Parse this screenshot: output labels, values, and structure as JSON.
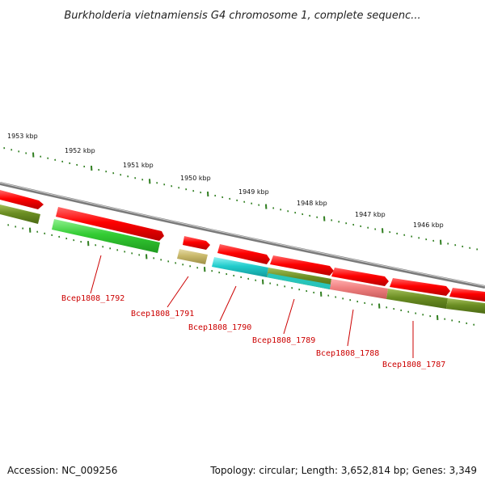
{
  "title": "Burkholderia vietnamiensis G4 chromosome 1, complete sequenc...",
  "footer": {
    "accession": "Accession: NC_009256",
    "summary": "Topology: circular; Length: 3,652,814 bp; Genes: 3,349"
  },
  "scale_labels": [
    "1953 kbp",
    "1952 kbp",
    "1951 kbp",
    "1950 kbp",
    "1949 kbp",
    "1948 kbp",
    "1947 kbp",
    "1946 kbp"
  ],
  "gene_labels": [
    "Bcep1808_1792",
    "Bcep1808_1791",
    "Bcep1808_1790",
    "Bcep1808_1789",
    "Bcep1808_1788",
    "Bcep1808_1787"
  ],
  "colors": {
    "forward_cds": "#ff0000",
    "backbone": "#888888",
    "tick": "#2e7d1e",
    "label": "#cc0000",
    "olive": "#6b8e23",
    "green": "#33cc33",
    "tan": "#c8b86a",
    "cyan": "#22cccc",
    "pink": "#f08080"
  }
}
